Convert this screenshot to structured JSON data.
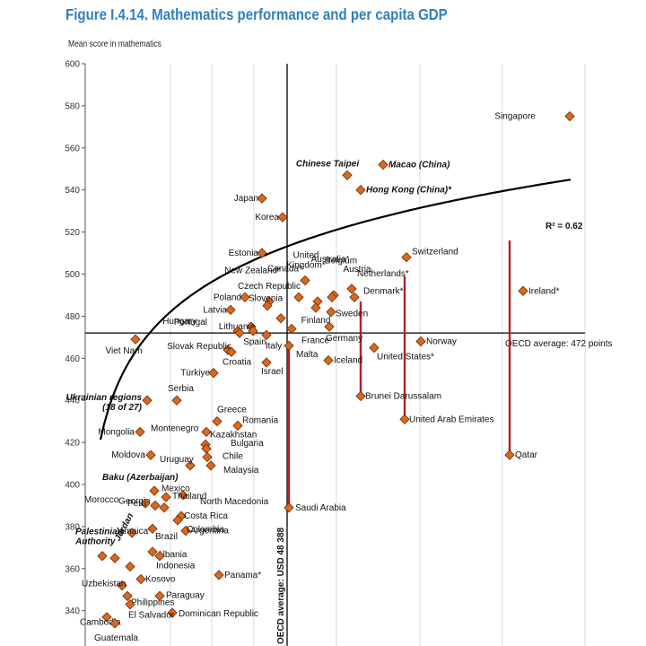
{
  "title": "Figure I.4.14. Mathematics performance and per capita GDP",
  "chart_data": {
    "type": "scatter",
    "ylabel": "Mean score in mathematics",
    "xlabel": "",
    "ylim": [
      335,
      600
    ],
    "y_ticks": [
      340,
      360,
      380,
      400,
      420,
      440,
      460,
      480,
      500,
      520,
      540,
      560,
      580,
      600
    ],
    "x_scale": "GDP per capita (relative position)",
    "grid": "vertical lines",
    "oecd_average_score": 472,
    "oecd_average_score_label": "OECD average: 472 points",
    "oecd_average_gdp_label": "OECD average: USD 48 388",
    "r_squared_label": "R² = 0.62",
    "marker_color": "#d9691e",
    "trend_color": "#000000",
    "line_color": "#b22222",
    "points": [
      {
        "name": "Singapore",
        "x": 635,
        "y": 575
      },
      {
        "name": "Chinese Taipei",
        "x": 387,
        "y": 547,
        "style": "bi"
      },
      {
        "name": "Macao (China)",
        "x": 427,
        "y": 552,
        "style": "bi"
      },
      {
        "name": "Hong Kong (China)*",
        "x": 402,
        "y": 540,
        "style": "bi"
      },
      {
        "name": "Japan",
        "x": 292,
        "y": 536
      },
      {
        "name": "Korea",
        "x": 315,
        "y": 527
      },
      {
        "name": "United Kingdom*",
        "x": 333,
        "y": 489
      },
      {
        "name": "Australia*",
        "x": 354,
        "y": 487
      },
      {
        "name": "New Zealand*",
        "x": 313,
        "y": 479
      },
      {
        "name": "Austria",
        "x": 372,
        "y": 490
      },
      {
        "name": "Estonia",
        "x": 292,
        "y": 510
      },
      {
        "name": "Belgium",
        "x": 370,
        "y": 489
      },
      {
        "name": "Canada*",
        "x": 340,
        "y": 497
      },
      {
        "name": "Netherlands*",
        "x": 392,
        "y": 493
      },
      {
        "name": "Switzerland",
        "x": 453,
        "y": 508
      },
      {
        "name": "Czech Republic",
        "x": 300,
        "y": 487
      },
      {
        "name": "Denmark*",
        "x": 395,
        "y": 489
      },
      {
        "name": "Slovenia",
        "x": 298,
        "y": 485
      },
      {
        "name": "Ireland*",
        "x": 583,
        "y": 492
      },
      {
        "name": "Poland",
        "x": 273,
        "y": 489
      },
      {
        "name": "Finland",
        "x": 352,
        "y": 484
      },
      {
        "name": "Latvia",
        "x": 257,
        "y": 483
      },
      {
        "name": "Lithuania",
        "x": 280,
        "y": 475
      },
      {
        "name": "Hungary",
        "x": 265,
        "y": 473
      },
      {
        "name": "Sweden",
        "x": 369,
        "y": 482
      },
      {
        "name": "Portugal",
        "x": 267,
        "y": 472
      },
      {
        "name": "Spain",
        "x": 282,
        "y": 473
      },
      {
        "name": "Italy",
        "x": 297,
        "y": 471
      },
      {
        "name": "France",
        "x": 325,
        "y": 474
      },
      {
        "name": "Germany",
        "x": 367,
        "y": 475
      },
      {
        "name": "Norway",
        "x": 469,
        "y": 468
      },
      {
        "name": "Viet Nam",
        "x": 151,
        "y": 469
      },
      {
        "name": "Slovak Republic",
        "x": 254,
        "y": 464
      },
      {
        "name": "United States*",
        "x": 417,
        "y": 465
      },
      {
        "name": "Croatia",
        "x": 258,
        "y": 463
      },
      {
        "name": "Malta",
        "x": 322,
        "y": 466
      },
      {
        "name": "Iceland",
        "x": 366,
        "y": 459
      },
      {
        "name": "Israel",
        "x": 297,
        "y": 458
      },
      {
        "name": "Türkiye",
        "x": 238,
        "y": 453
      },
      {
        "name": "Brunei Darussalam",
        "x": 402,
        "y": 442
      },
      {
        "name": "Serbia",
        "x": 197,
        "y": 440
      },
      {
        "name": "Ukrainian regions (18 of 27)",
        "x": 164,
        "y": 440,
        "style": "bi"
      },
      {
        "name": "United Arab Emirates",
        "x": 451,
        "y": 431
      },
      {
        "name": "Greece",
        "x": 242,
        "y": 430
      },
      {
        "name": "Romania",
        "x": 265,
        "y": 428
      },
      {
        "name": "Qatar",
        "x": 568,
        "y": 414
      },
      {
        "name": "Mongolia",
        "x": 156,
        "y": 425
      },
      {
        "name": "Montenegro",
        "x": 230,
        "y": 425
      },
      {
        "name": "Kazakhstan",
        "x": 229,
        "y": 419
      },
      {
        "name": "Moldova",
        "x": 168,
        "y": 414
      },
      {
        "name": "Bulgaria",
        "x": 230,
        "y": 417
      },
      {
        "name": "Chile",
        "x": 231,
        "y": 413
      },
      {
        "name": "Malaysia",
        "x": 235,
        "y": 409
      },
      {
        "name": "Uruguay",
        "x": 212,
        "y": 409
      },
      {
        "name": "Mexico",
        "x": 204,
        "y": 395
      },
      {
        "name": "Baku (Azerbaijan)",
        "x": 172,
        "y": 397,
        "style": "bi"
      },
      {
        "name": "Georgia",
        "x": 173,
        "y": 390
      },
      {
        "name": "Thailand",
        "x": 185,
        "y": 394
      },
      {
        "name": "Peru",
        "x": 162,
        "y": 391
      },
      {
        "name": "North Macedonia",
        "x": 183,
        "y": 389
      },
      {
        "name": "Saudi Arabia",
        "x": 322,
        "y": 389
      },
      {
        "name": "Costa Rica",
        "x": 202,
        "y": 385
      },
      {
        "name": "Morocco",
        "x": 128,
        "y": 365
      },
      {
        "name": "Jamaica*",
        "x": 147,
        "y": 377
      },
      {
        "name": "Argentina",
        "x": 207,
        "y": 378
      },
      {
        "name": "Jordan",
        "x": 145,
        "y": 361,
        "style": "bi"
      },
      {
        "name": "Brazil",
        "x": 170,
        "y": 379
      },
      {
        "name": "Colombia",
        "x": 198,
        "y": 383
      },
      {
        "name": "Palestinian Authority",
        "x": 114,
        "y": 366,
        "style": "bi"
      },
      {
        "name": "Albania",
        "x": 170,
        "y": 368
      },
      {
        "name": "Indonesia",
        "x": 178,
        "y": 366
      },
      {
        "name": "Kosovo",
        "x": 157,
        "y": 355
      },
      {
        "name": "Panama*",
        "x": 244,
        "y": 357
      },
      {
        "name": "Uzbekistan",
        "x": 136,
        "y": 352
      },
      {
        "name": "Philippines",
        "x": 142,
        "y": 347
      },
      {
        "name": "Paraguay",
        "x": 178,
        "y": 347
      },
      {
        "name": "Dominican Republic",
        "x": 192,
        "y": 339
      },
      {
        "name": "Cambodia",
        "x": 119,
        "y": 337
      },
      {
        "name": "El Salvador",
        "x": 145,
        "y": 343
      },
      {
        "name": "Guatemala",
        "x": 128,
        "y": 334
      }
    ],
    "residual_lines": [
      {
        "name": "Saudi Arabia",
        "x": 322,
        "from": 389,
        "to": 467
      },
      {
        "name": "Brunei Darussalam",
        "x": 402,
        "from": 442,
        "to": 487
      },
      {
        "name": "United Arab Emirates",
        "x": 451,
        "from": 431,
        "to": 499
      },
      {
        "name": "Qatar",
        "x": 568,
        "from": 414,
        "to": 516
      }
    ]
  }
}
